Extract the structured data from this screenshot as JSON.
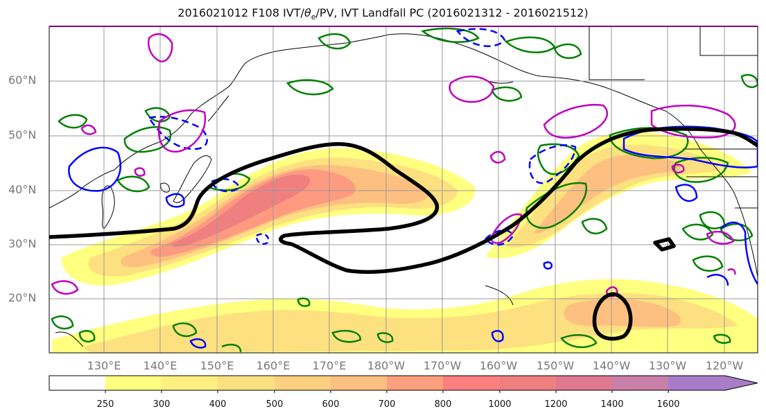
{
  "title": {
    "prefix": "2016021012 F108 IVT/",
    "theta": "θ",
    "sub": "e",
    "suffix": "/PV, IVT Landfall PC (2016021312 - 2016021512)"
  },
  "lat_labels": [
    "60°N",
    "50°N",
    "40°N",
    "30°N",
    "20°N"
  ],
  "lon_labels": [
    "130°E",
    "140°E",
    "150°E",
    "160°E",
    "170°E",
    "180°W",
    "170°W",
    "160°W",
    "150°W",
    "140°W",
    "130°W",
    "120°W"
  ],
  "colorbar": {
    "labels": [
      "250",
      "300",
      "400",
      "500",
      "600",
      "700",
      "800",
      "1000",
      "1200",
      "1400",
      "1600"
    ],
    "colors": [
      "#ffff80",
      "#fff080",
      "#fde080",
      "#fdd080",
      "#fdc080",
      "#fda080",
      "#fd8080",
      "#f08080",
      "#e07890",
      "#c880a8",
      "#a87cc8"
    ]
  },
  "colors": {
    "pv_green": "#008000",
    "theta_blue": "#0000ff",
    "magenta": "#c000c0",
    "jet_line": "#000000",
    "grid": "#999999"
  }
}
